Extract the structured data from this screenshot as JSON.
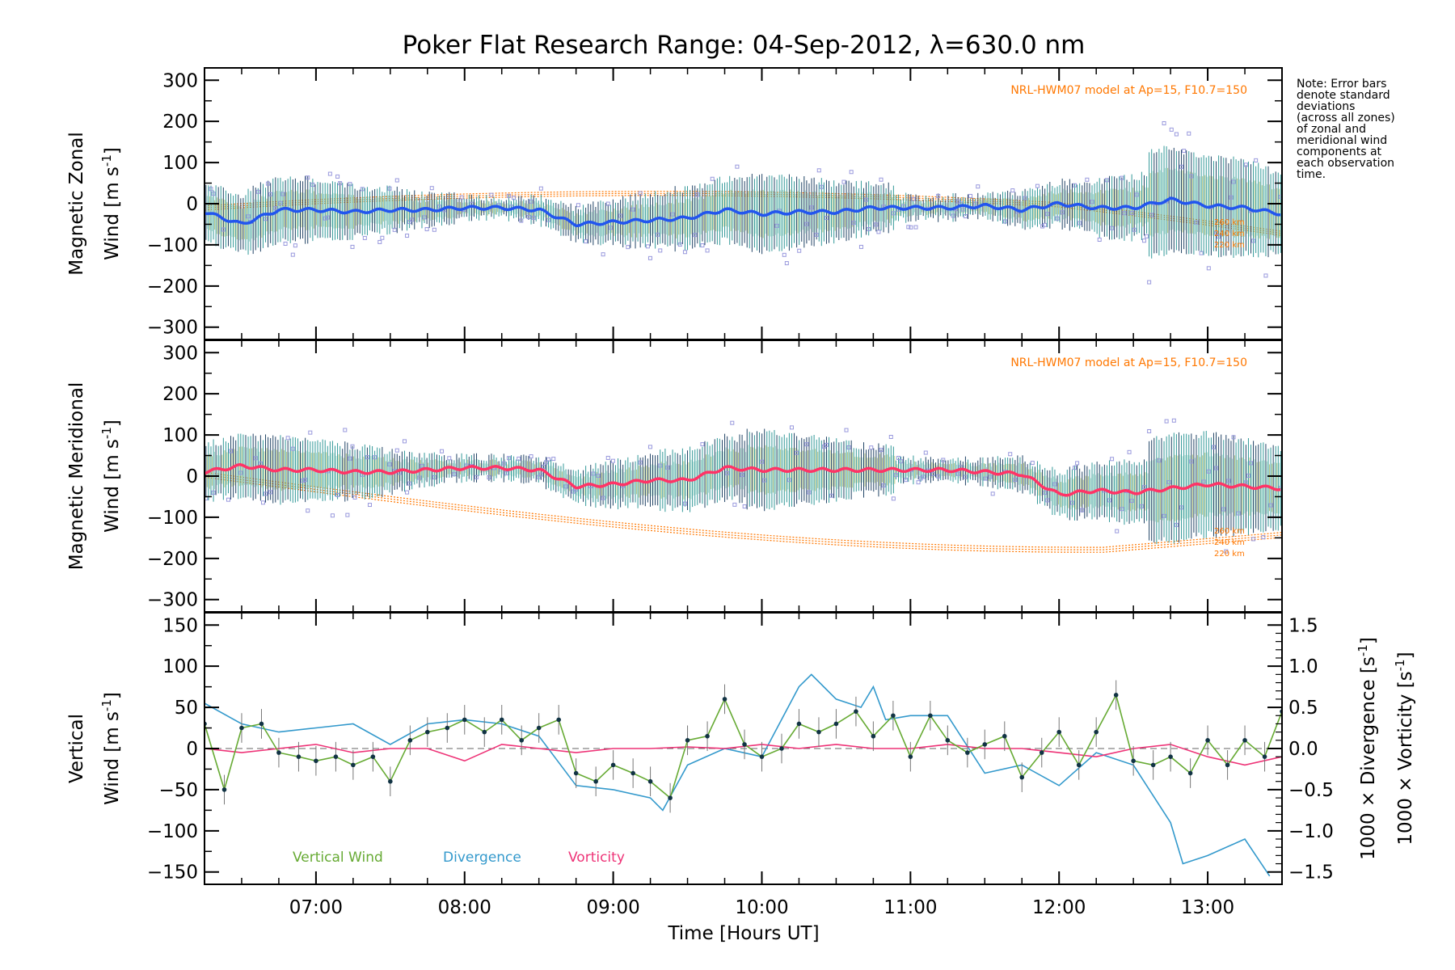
{
  "title": "Poker Flat Research Range: 04-Sep-2012, λ=630.0 nm",
  "note_lines": [
    "Note: Error bars",
    "denote standard",
    "deviations",
    "(across all zones)",
    "of zonal and",
    "meridional wind",
    "components at",
    "each observation",
    "time."
  ],
  "xlabel": "Time [Hours UT]",
  "x_ticks": [
    "07:00",
    "08:00",
    "09:00",
    "10:00",
    "11:00",
    "12:00",
    "13:00"
  ],
  "colors": {
    "zonal_mean": "#2255ee",
    "meridional_mean": "#ff3366",
    "vertical": "#66aa33",
    "divergence": "#3399cc",
    "vorticity": "#ee3377",
    "model": "#ff7700",
    "scatter": "#9999dd"
  },
  "panels": {
    "zonal": {
      "ylabel1": "Magnetic Zonal",
      "ylabel2": "Wind [m s",
      "ylabel_sup": "-1",
      "ylabel_end": "]",
      "y_ticks": [
        "300",
        "200",
        "100",
        "0",
        "−100",
        "−200",
        "−300"
      ],
      "model_label": "NRL-HWM07 model at Ap=15, F10.7=150",
      "alt_labels": [
        "260 km",
        "240 km",
        "220 km"
      ]
    },
    "meridional": {
      "ylabel1": "Magnetic Meridional",
      "ylabel2": "Wind [m s",
      "ylabel_sup": "-1",
      "ylabel_end": "]",
      "y_ticks": [
        "300",
        "200",
        "100",
        "0",
        "−100",
        "−200",
        "−300"
      ],
      "model_label": "NRL-HWM07 model at Ap=15, F10.7=150",
      "alt_labels": [
        "260 km",
        "240 km",
        "220 km"
      ]
    },
    "vertical": {
      "ylabel1": "Vertical",
      "ylabel2": "Wind [m s",
      "ylabel_sup": "-1",
      "ylabel_end": "]",
      "y_ticks": [
        "150",
        "100",
        "50",
        "0",
        "−50",
        "−100",
        "−150"
      ],
      "right_ticks": [
        "1.5",
        "1.0",
        "0.5",
        "0.0",
        "−0.5",
        "−1.0",
        "−1.5"
      ],
      "right_label_div": "1000 × Divergence [s",
      "right_label_vor": "1000 × Vorticity [s",
      "right_sup": "-1",
      "right_end": "]",
      "legend": [
        "Vertical Wind",
        "Divergence",
        "Vorticity"
      ]
    }
  },
  "chart_data": [
    {
      "type": "line",
      "title": "Magnetic Zonal Wind",
      "xlim": [
        "06:15",
        "13:30"
      ],
      "ylim": [
        -330,
        330
      ],
      "series": [
        {
          "x": [
            "06:15",
            "06:30",
            "06:45",
            "07:00",
            "07:15",
            "07:30",
            "07:45",
            "08:00",
            "08:15",
            "08:30",
            "08:45",
            "09:00",
            "09:15",
            "09:30",
            "09:45",
            "10:00",
            "10:15",
            "10:30",
            "10:45",
            "11:00",
            "11:15",
            "11:30",
            "11:45",
            "12:00",
            "12:15",
            "12:30",
            "12:45",
            "13:00",
            "13:15",
            "13:30"
          ],
          "y": [
            -20,
            -50,
            -15,
            -15,
            -20,
            -15,
            -15,
            -10,
            -10,
            -15,
            -50,
            -45,
            -40,
            -35,
            -15,
            -25,
            -20,
            -20,
            -10,
            -10,
            -10,
            -5,
            -15,
            0,
            -10,
            -10,
            10,
            -5,
            -10,
            -25
          ]
        }
      ]
    },
    {
      "type": "line",
      "title": "Magnetic Meridional Wind",
      "xlim": [
        "06:15",
        "13:30"
      ],
      "ylim": [
        -330,
        330
      ],
      "series": [
        {
          "x": [
            "06:15",
            "06:30",
            "06:45",
            "07:00",
            "07:15",
            "07:30",
            "07:45",
            "08:00",
            "08:15",
            "08:30",
            "08:45",
            "09:00",
            "09:15",
            "09:30",
            "09:45",
            "10:00",
            "10:15",
            "10:30",
            "10:45",
            "11:00",
            "11:15",
            "11:30",
            "11:45",
            "12:00",
            "12:15",
            "12:30",
            "12:45",
            "13:00",
            "13:15",
            "13:30"
          ],
          "y": [
            10,
            25,
            15,
            15,
            10,
            10,
            15,
            20,
            20,
            15,
            -25,
            -20,
            -10,
            -10,
            20,
            15,
            15,
            15,
            15,
            15,
            15,
            10,
            5,
            -45,
            -35,
            -40,
            -30,
            -20,
            -25,
            -30
          ]
        }
      ]
    },
    {
      "type": "line",
      "title": "Vertical Wind / Divergence / Vorticity",
      "xlim": [
        "06:15",
        "13:30"
      ],
      "ylim": [
        -165,
        165
      ],
      "y2lim": [
        -1.65,
        1.65
      ],
      "series": [
        {
          "name": "Vertical Wind",
          "x": [
            "06:15",
            "06:23",
            "06:30",
            "06:38",
            "06:45",
            "06:53",
            "07:00",
            "07:08",
            "07:15",
            "07:23",
            "07:30",
            "07:38",
            "07:45",
            "07:53",
            "08:00",
            "08:08",
            "08:15",
            "08:23",
            "08:30",
            "08:38",
            "08:45",
            "08:53",
            "09:00",
            "09:08",
            "09:15",
            "09:23",
            "09:30",
            "09:38",
            "09:45",
            "09:53",
            "10:00",
            "10:08",
            "10:15",
            "10:23",
            "10:30",
            "10:38",
            "10:45",
            "10:53",
            "11:00",
            "11:08",
            "11:15",
            "11:23",
            "11:30",
            "11:38",
            "11:45",
            "11:53",
            "12:00",
            "12:08",
            "12:15",
            "12:23",
            "12:30",
            "12:38",
            "12:45",
            "12:53",
            "13:00",
            "13:08",
            "13:15",
            "13:23",
            "13:30"
          ],
          "y": [
            30,
            -50,
            25,
            30,
            -5,
            -10,
            -15,
            -10,
            -20,
            -10,
            -40,
            10,
            20,
            25,
            35,
            20,
            35,
            10,
            25,
            35,
            -30,
            -40,
            -20,
            -30,
            -40,
            -60,
            10,
            15,
            60,
            5,
            -10,
            0,
            30,
            20,
            30,
            45,
            15,
            40,
            -10,
            40,
            10,
            -5,
            5,
            15,
            -35,
            -5,
            20,
            -20,
            20,
            65,
            -15,
            -20,
            -10,
            -30,
            10,
            -20,
            10,
            -10,
            45
          ]
        },
        {
          "name": "Divergence",
          "x": [
            "06:15",
            "06:30",
            "06:45",
            "07:00",
            "07:15",
            "07:30",
            "07:45",
            "08:00",
            "08:15",
            "08:30",
            "08:45",
            "09:00",
            "09:15",
            "09:20",
            "09:30",
            "09:45",
            "10:00",
            "10:15",
            "10:20",
            "10:30",
            "10:40",
            "10:45",
            "10:50",
            "11:00",
            "11:15",
            "11:30",
            "11:45",
            "12:00",
            "12:15",
            "12:30",
            "12:45",
            "12:50",
            "13:00",
            "13:15",
            "13:25"
          ],
          "y": [
            0.55,
            0.3,
            0.2,
            0.25,
            0.3,
            0.05,
            0.3,
            0.35,
            0.3,
            0.15,
            -0.45,
            -0.5,
            -0.6,
            -0.75,
            -0.2,
            0.0,
            -0.1,
            0.75,
            0.9,
            0.6,
            0.5,
            0.75,
            0.35,
            0.4,
            0.4,
            -0.3,
            -0.2,
            -0.45,
            -0.05,
            -0.2,
            -0.9,
            -1.4,
            -1.3,
            -1.1,
            -1.55
          ]
        },
        {
          "name": "Vorticity",
          "x": [
            "06:15",
            "06:30",
            "06:45",
            "07:00",
            "07:15",
            "07:30",
            "07:45",
            "08:00",
            "08:15",
            "08:30",
            "08:45",
            "09:00",
            "09:15",
            "09:30",
            "09:45",
            "10:00",
            "10:15",
            "10:30",
            "10:45",
            "11:00",
            "11:15",
            "11:30",
            "11:45",
            "12:00",
            "12:15",
            "12:30",
            "12:45",
            "13:00",
            "13:15",
            "13:30"
          ],
          "y": [
            0.0,
            -0.05,
            0.0,
            0.05,
            -0.05,
            0.0,
            0.0,
            -0.15,
            0.05,
            0.0,
            -0.05,
            0.0,
            0.0,
            0.02,
            0.0,
            0.05,
            0.0,
            0.05,
            0.0,
            0.0,
            0.05,
            0.0,
            0.0,
            -0.05,
            -0.1,
            0.0,
            0.05,
            -0.1,
            -0.2,
            -0.1
          ]
        }
      ]
    }
  ]
}
